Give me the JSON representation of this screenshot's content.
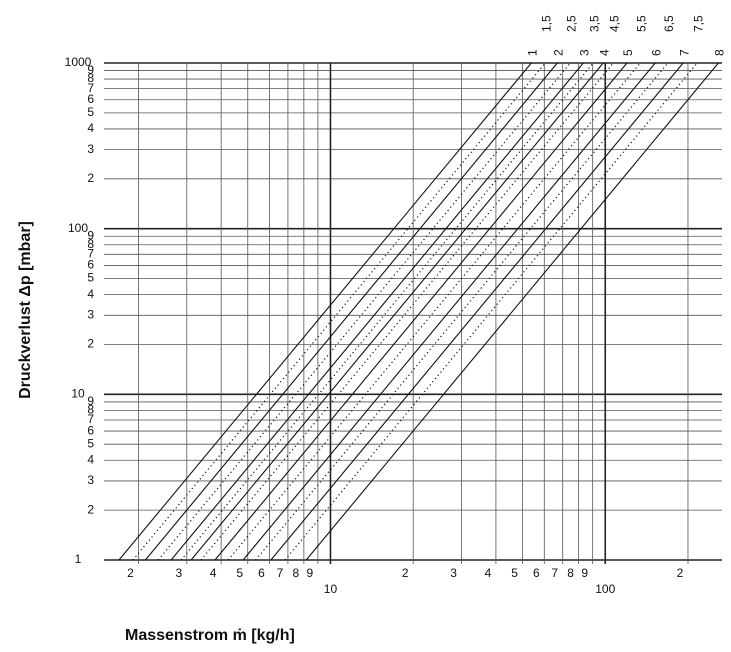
{
  "chart_data": {
    "type": "line",
    "log_x": true,
    "log_y": true,
    "grid": true,
    "x_label": "Massenstrom ṁ  [kg/h]",
    "y_label": "Druckverlust Δp [mbar]",
    "xlim": [
      1.55,
      266
    ],
    "ylim": [
      1,
      1000
    ],
    "xticks": [
      2,
      3,
      4,
      5,
      6,
      7,
      8,
      9,
      10,
      {
        "value": 20,
        "label": "2"
      },
      {
        "value": 30,
        "label": "3"
      },
      {
        "value": 40,
        "label": "4"
      },
      {
        "value": 50,
        "label": "5"
      },
      {
        "value": 60,
        "label": "6"
      },
      {
        "value": 70,
        "label": "7"
      },
      {
        "value": 80,
        "label": "8"
      },
      {
        "value": 90,
        "label": "9"
      },
      100,
      {
        "value": 200,
        "label": "2"
      }
    ],
    "yticks": [
      1,
      2,
      3,
      4,
      5,
      6,
      7,
      8,
      9,
      10,
      {
        "value": 20,
        "label": "2"
      },
      {
        "value": 30,
        "label": "3"
      },
      {
        "value": 40,
        "label": "4"
      },
      {
        "value": 50,
        "label": "5"
      },
      {
        "value": 60,
        "label": "6"
      },
      {
        "value": 70,
        "label": "7"
      },
      {
        "value": 80,
        "label": "8"
      },
      {
        "value": 90,
        "label": "9"
      },
      100,
      {
        "value": 200,
        "label": "2"
      },
      {
        "value": 300,
        "label": "3"
      },
      {
        "value": 400,
        "label": "4"
      },
      {
        "value": 500,
        "label": "5"
      },
      {
        "value": 600,
        "label": "6"
      },
      {
        "value": 700,
        "label": "7"
      },
      {
        "value": 800,
        "label": "8"
      },
      {
        "value": 900,
        "label": "9"
      },
      1000
    ],
    "series": [
      {
        "name": "1",
        "color": "#111",
        "dotted": false,
        "x": [
          1.7,
          53.8
        ],
        "values": [
          1,
          1000
        ]
      },
      {
        "name": "1,5",
        "color": "#111",
        "dotted": true,
        "x": [
          1.91,
          60.5
        ],
        "values": [
          1,
          1000
        ]
      },
      {
        "name": "2",
        "color": "#111",
        "dotted": false,
        "x": [
          2.12,
          66.9
        ],
        "values": [
          1,
          1000
        ]
      },
      {
        "name": "2,5",
        "color": "#111",
        "dotted": true,
        "x": [
          2.36,
          74.6
        ],
        "values": [
          1,
          1000
        ]
      },
      {
        "name": "3",
        "color": "#111",
        "dotted": false,
        "x": [
          2.63,
          83.2
        ],
        "values": [
          1,
          1000
        ]
      },
      {
        "name": "3,5",
        "color": "#111",
        "dotted": true,
        "x": [
          2.86,
          90.4
        ],
        "values": [
          1,
          1000
        ]
      },
      {
        "name": "4",
        "color": "#111",
        "dotted": false,
        "x": [
          3.11,
          98.3
        ],
        "values": [
          1,
          1000
        ]
      },
      {
        "name": "4,5",
        "color": "#111",
        "dotted": true,
        "x": [
          3.38,
          107
        ],
        "values": [
          1,
          1000
        ]
      },
      {
        "name": "5",
        "color": "#111",
        "dotted": false,
        "x": [
          3.8,
          120
        ],
        "values": [
          1,
          1000
        ]
      },
      {
        "name": "5,5",
        "color": "#111",
        "dotted": true,
        "x": [
          4.24,
          134
        ],
        "values": [
          1,
          1000
        ]
      },
      {
        "name": "6",
        "color": "#111",
        "dotted": false,
        "x": [
          4.81,
          152
        ],
        "values": [
          1,
          1000
        ]
      },
      {
        "name": "6,5",
        "color": "#111",
        "dotted": true,
        "x": [
          5.34,
          169
        ],
        "values": [
          1,
          1000
        ]
      },
      {
        "name": "7",
        "color": "#111",
        "dotted": false,
        "x": [
          6.07,
          192
        ],
        "values": [
          1,
          1000
        ]
      },
      {
        "name": "7,5",
        "color": "#111",
        "dotted": true,
        "x": [
          6.83,
          216
        ],
        "values": [
          1,
          1000
        ]
      },
      {
        "name": "8",
        "color": "#111",
        "dotted": false,
        "x": [
          8.16,
          258
        ],
        "values": [
          1,
          1000
        ]
      }
    ]
  }
}
